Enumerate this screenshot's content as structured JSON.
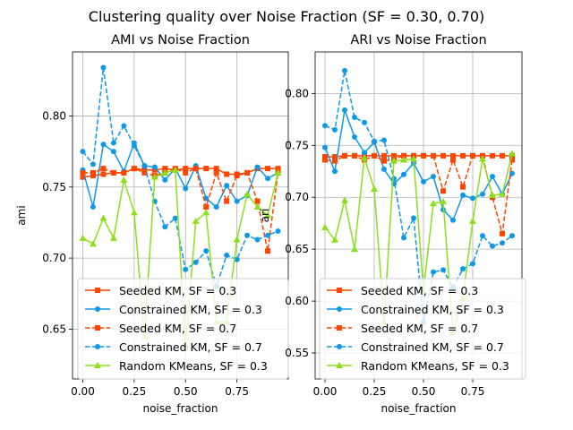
{
  "figure": {
    "suptitle": "Clustering quality over Noise Fraction (SF = 0.30, 0.70)"
  },
  "chart_data": [
    {
      "type": "line",
      "title": "AMI vs Noise Fraction",
      "xlabel": "noise_fraction",
      "ylabel": "ami",
      "xlim": [
        -0.05,
        1.0
      ],
      "ylim": [
        0.615,
        0.845
      ],
      "xticks": [
        0.0,
        0.25,
        0.5,
        0.75
      ],
      "xtick_labels": [
        "0.00",
        "0.25",
        "0.50",
        "0.75"
      ],
      "yticks": [
        0.65,
        0.7,
        0.75,
        0.8
      ],
      "ytick_labels": [
        "0.65",
        "0.70",
        "0.75",
        "0.80"
      ],
      "grid": true,
      "legend_position": "lower-center",
      "x": [
        0.0,
        0.05,
        0.1,
        0.15,
        0.2,
        0.25,
        0.3,
        0.35,
        0.4,
        0.45,
        0.5,
        0.55,
        0.6,
        0.65,
        0.7,
        0.75,
        0.8,
        0.85,
        0.9,
        0.95
      ],
      "series": [
        {
          "name": "Seeded KM, SF = 0.3",
          "color": "#ff4500",
          "linestyle": "solid",
          "marker": "square",
          "values": [
            0.757,
            0.758,
            0.759,
            0.76,
            0.76,
            0.763,
            0.762,
            0.762,
            0.763,
            0.762,
            0.763,
            0.763,
            0.763,
            0.763,
            0.759,
            0.759,
            0.76,
            0.763,
            0.763,
            0.763
          ]
        },
        {
          "name": "Constrained KM, SF = 0.3",
          "color": "#0e99e8",
          "linestyle": "solid",
          "marker": "circle",
          "values": [
            0.762,
            0.736,
            0.78,
            0.775,
            0.761,
            0.781,
            0.765,
            0.764,
            0.755,
            0.763,
            0.749,
            0.765,
            0.742,
            0.736,
            0.751,
            0.74,
            0.744,
            0.764,
            0.756,
            0.76
          ]
        },
        {
          "name": "Seeded KM, SF = 0.7",
          "color": "#ff4500",
          "linestyle": "dashed",
          "marker": "square",
          "values": [
            0.76,
            0.76,
            0.763,
            0.76,
            0.76,
            0.763,
            0.76,
            0.758,
            0.76,
            0.763,
            0.76,
            0.763,
            0.736,
            0.76,
            0.74,
            0.758,
            0.76,
            0.74,
            0.705,
            0.76
          ]
        },
        {
          "name": "Constrained KM, SF = 0.7",
          "color": "#0e99e8",
          "linestyle": "dashed",
          "marker": "circle",
          "values": [
            0.775,
            0.766,
            0.834,
            0.781,
            0.793,
            0.779,
            0.765,
            0.74,
            0.722,
            0.728,
            0.692,
            0.697,
            0.705,
            0.68,
            0.702,
            0.699,
            0.716,
            0.713,
            0.716,
            0.719
          ]
        },
        {
          "name": "Random KMeans, SF = 0.3",
          "color": "#8ce01a",
          "linestyle": "solid",
          "marker": "triangle",
          "values": [
            0.714,
            0.71,
            0.728,
            0.714,
            0.755,
            0.732,
            0.645,
            0.757,
            0.76,
            0.762,
            0.638,
            0.726,
            0.732,
            0.655,
            0.655,
            0.713,
            0.745,
            0.736,
            0.73,
            0.76
          ]
        }
      ]
    },
    {
      "type": "line",
      "title": "ARI vs Noise Fraction",
      "xlabel": "noise_fraction",
      "ylabel": "ari",
      "xlim": [
        -0.05,
        1.0
      ],
      "ylim": [
        0.525,
        0.84
      ],
      "xticks": [
        0.0,
        0.25,
        0.5,
        0.75
      ],
      "xtick_labels": [
        "0.00",
        "0.25",
        "0.50",
        "0.75"
      ],
      "yticks": [
        0.55,
        0.6,
        0.65,
        0.7,
        0.75,
        0.8
      ],
      "ytick_labels": [
        "0.55",
        "0.60",
        "0.65",
        "0.70",
        "0.75",
        "0.80"
      ],
      "grid": true,
      "legend_position": "lower-center",
      "x": [
        0.0,
        0.05,
        0.1,
        0.15,
        0.2,
        0.25,
        0.3,
        0.35,
        0.4,
        0.45,
        0.5,
        0.55,
        0.6,
        0.65,
        0.7,
        0.75,
        0.8,
        0.85,
        0.9,
        0.95
      ],
      "series": [
        {
          "name": "Seeded KM, SF = 0.3",
          "color": "#ff4500",
          "linestyle": "solid",
          "marker": "square",
          "values": [
            0.739,
            0.739,
            0.74,
            0.74,
            0.74,
            0.74,
            0.74,
            0.74,
            0.74,
            0.74,
            0.74,
            0.74,
            0.74,
            0.74,
            0.74,
            0.74,
            0.74,
            0.74,
            0.74,
            0.74
          ]
        },
        {
          "name": "Constrained KM, SF = 0.3",
          "color": "#0e99e8",
          "linestyle": "solid",
          "marker": "circle",
          "values": [
            0.748,
            0.725,
            0.784,
            0.758,
            0.743,
            0.753,
            0.727,
            0.713,
            0.722,
            0.733,
            0.715,
            0.72,
            0.688,
            0.678,
            0.702,
            0.699,
            0.703,
            0.72,
            0.703,
            0.723
          ]
        },
        {
          "name": "Seeded KM, SF = 0.7",
          "color": "#ff4500",
          "linestyle": "dashed",
          "marker": "square",
          "values": [
            0.736,
            0.735,
            0.74,
            0.74,
            0.736,
            0.74,
            0.735,
            0.737,
            0.74,
            0.74,
            0.74,
            0.74,
            0.706,
            0.736,
            0.71,
            0.74,
            0.74,
            0.7,
            0.665,
            0.736
          ]
        },
        {
          "name": "Constrained KM, SF = 0.7",
          "color": "#0e99e8",
          "linestyle": "dashed",
          "marker": "circle",
          "values": [
            0.769,
            0.765,
            0.822,
            0.777,
            0.772,
            0.754,
            0.755,
            0.718,
            0.661,
            0.68,
            0.58,
            0.628,
            0.63,
            0.613,
            0.631,
            0.636,
            0.663,
            0.653,
            0.656,
            0.663
          ]
        },
        {
          "name": "Random KMeans, SF = 0.3",
          "color": "#8ce01a",
          "linestyle": "solid",
          "marker": "triangle",
          "values": [
            0.671,
            0.659,
            0.697,
            0.65,
            0.738,
            0.708,
            0.58,
            0.735,
            0.736,
            0.737,
            0.61,
            0.694,
            0.696,
            0.57,
            0.603,
            0.677,
            0.737,
            0.702,
            0.703,
            0.742
          ]
        }
      ]
    }
  ]
}
